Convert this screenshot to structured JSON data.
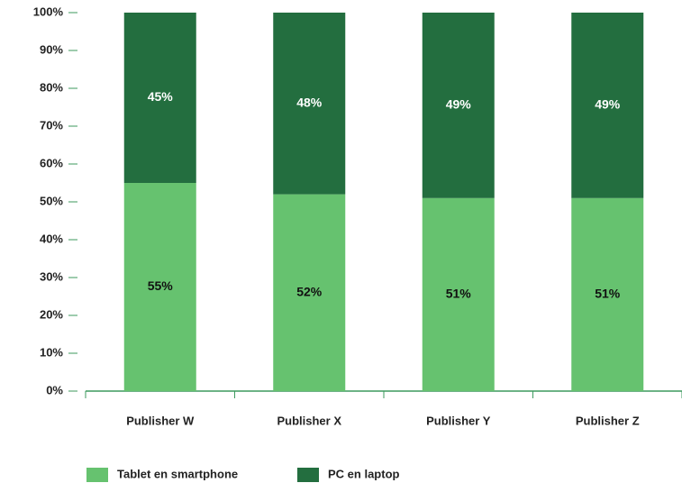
{
  "chart_data": {
    "type": "bar",
    "stacked": true,
    "categories": [
      "Publisher W",
      "Publisher X",
      "Publisher Y",
      "Publisher Z"
    ],
    "series": [
      {
        "name": "Tablet en smartphone",
        "color": "#66c26f",
        "values": [
          55,
          52,
          51,
          51
        ],
        "value_labels": [
          "55%",
          "52%",
          "51%",
          "51%"
        ]
      },
      {
        "name": "PC en laptop",
        "color": "#236e3f",
        "values": [
          45,
          48,
          49,
          49
        ],
        "value_labels": [
          "45%",
          "48%",
          "49%",
          "49%"
        ]
      }
    ],
    "ylim": [
      0,
      100
    ],
    "yticks": [
      {
        "value": 0,
        "label": "0%"
      },
      {
        "value": 10,
        "label": "10%"
      },
      {
        "value": 20,
        "label": "20%"
      },
      {
        "value": 30,
        "label": "30%"
      },
      {
        "value": 40,
        "label": "40%"
      },
      {
        "value": 50,
        "label": "50%"
      },
      {
        "value": 60,
        "label": "60%"
      },
      {
        "value": 70,
        "label": "70%"
      },
      {
        "value": 80,
        "label": "80%"
      },
      {
        "value": 90,
        "label": "90%"
      },
      {
        "value": 100,
        "label": "100%"
      }
    ],
    "grid": false
  }
}
